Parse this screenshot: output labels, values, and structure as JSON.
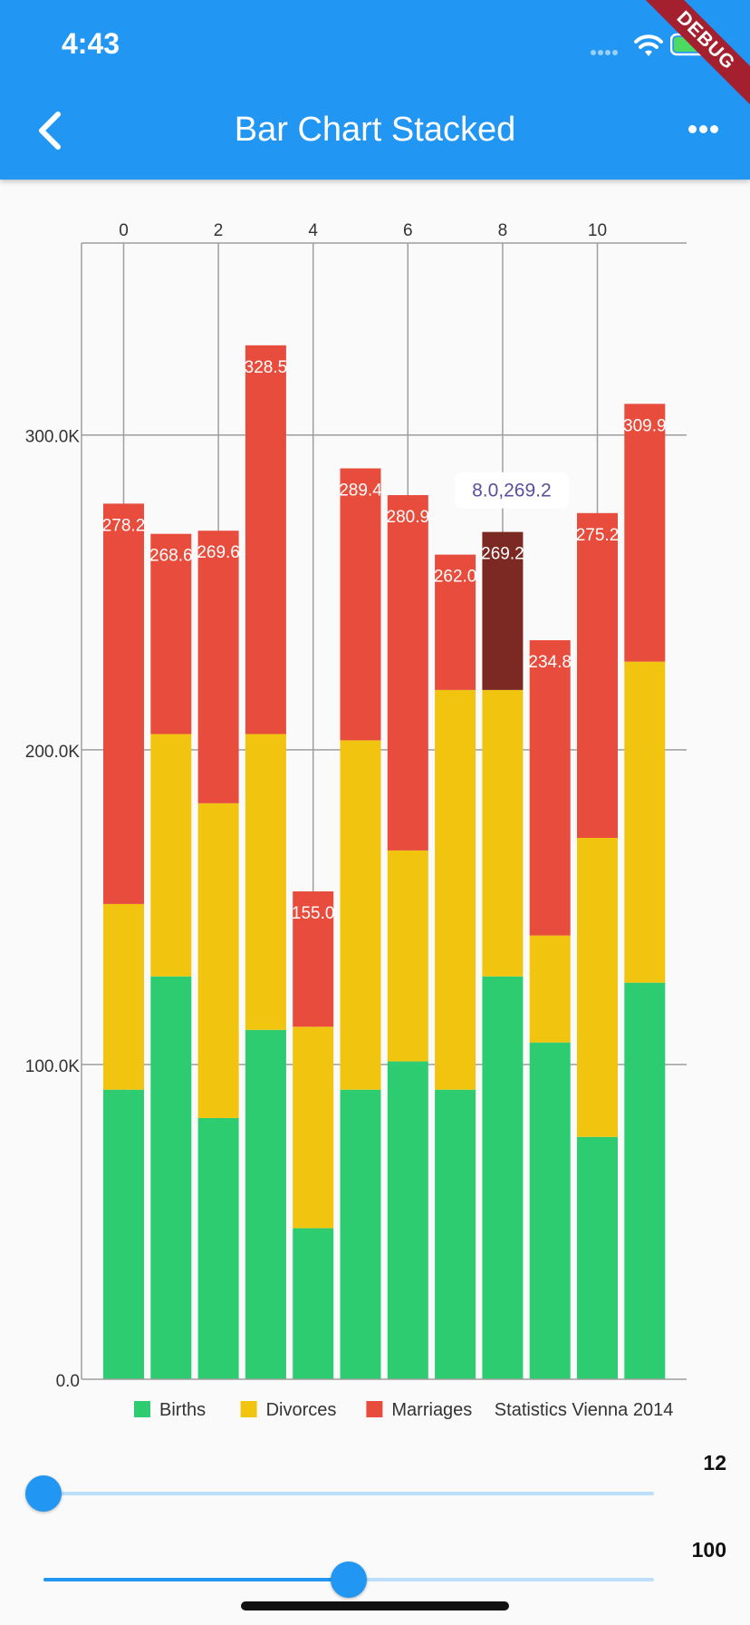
{
  "status_bar": {
    "time": "4:43",
    "debug_label": "DEBUG"
  },
  "app_bar": {
    "title": "Bar Chart Stacked"
  },
  "chart_data": {
    "type": "bar",
    "stacked": true,
    "x": [
      0,
      1,
      2,
      3,
      4,
      5,
      6,
      7,
      8,
      9,
      10,
      11
    ],
    "x_ticks": [
      "0",
      "2",
      "4",
      "6",
      "8",
      "10"
    ],
    "x_tick_values": [
      0,
      2,
      4,
      6,
      8,
      10
    ],
    "x_axis_position": "top",
    "y_ticks": [
      "0.0",
      "100.0K",
      "200.0K",
      "300.0K"
    ],
    "y_tick_values": [
      0,
      100,
      200,
      300
    ],
    "ylim": [
      0,
      361
    ],
    "grid": true,
    "series": [
      {
        "name": "Births",
        "color": "#2ECC71",
        "values": [
          92,
          128,
          83,
          111,
          48,
          92,
          101,
          92,
          128,
          107,
          77,
          126
        ]
      },
      {
        "name": "Divorces",
        "color": "#F1C40F",
        "values": [
          59,
          77,
          100,
          94,
          64,
          111,
          67,
          127,
          91,
          34,
          95,
          102
        ]
      },
      {
        "name": "Marriages",
        "color": "#E74C3C",
        "values": [
          127.2,
          63.6,
          86.6,
          123.5,
          43,
          86.4,
          112.9,
          43,
          50.2,
          93.8,
          103.2,
          81.9
        ]
      }
    ],
    "totals": [
      278.2,
      268.6,
      269.6,
      328.5,
      155.0,
      289.4,
      280.9,
      262.0,
      269.2,
      234.8,
      275.2,
      309.9
    ],
    "total_labels": [
      "278.2",
      "268.6",
      "269.6",
      "328.5",
      "155.0",
      "289.4",
      "280.9",
      "262.0",
      "269.2",
      "234.8",
      "275.2",
      "309.9"
    ],
    "highlight": {
      "index": 8,
      "series": "Marriages",
      "color": "#7B2922",
      "tooltip": "8.0,269.2"
    },
    "legend_position": "bottom",
    "legend_title": "Statistics Vienna 2014"
  },
  "sliders": [
    {
      "value_label": "12",
      "fraction": 0.0
    },
    {
      "value_label": "100",
      "fraction": 0.5
    }
  ]
}
